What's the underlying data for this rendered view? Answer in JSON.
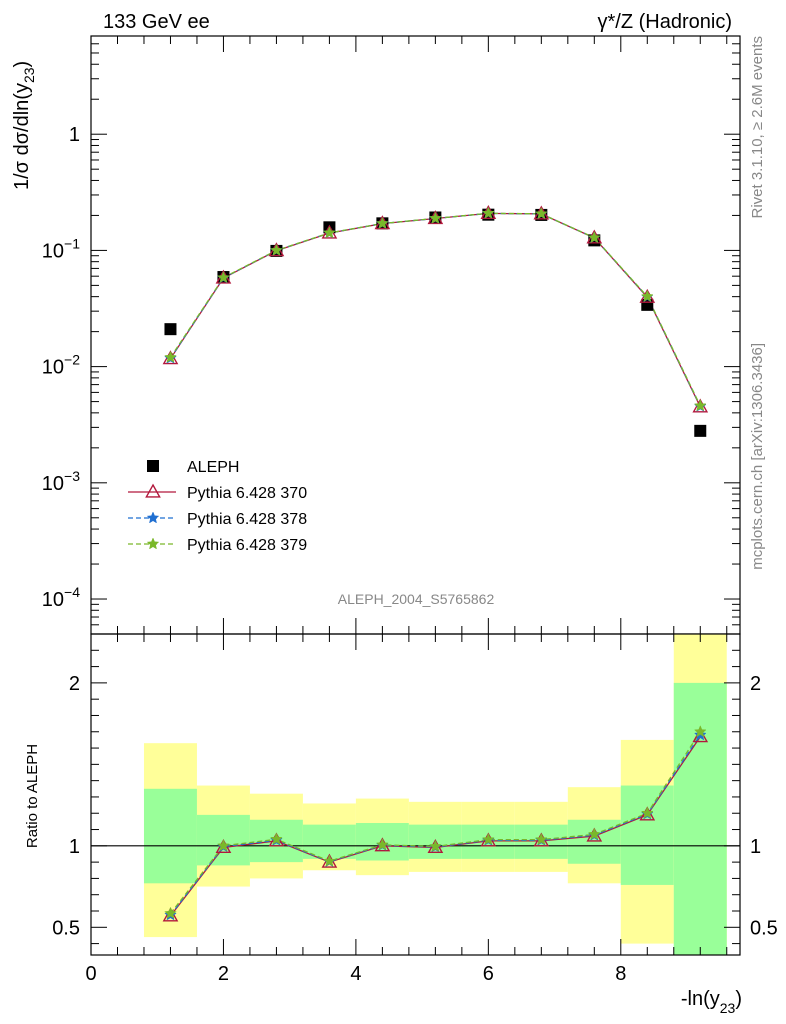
{
  "header": {
    "left": "133 GeV ee",
    "right": "γ*/Z (Hadronic)"
  },
  "side_text": {
    "top": "Rivet 3.1.10, ≥ 2.6M events",
    "bottom": "mcplots.cern.ch [arXiv:1306.3436]"
  },
  "watermark": "ALEPH_2004_S5765862",
  "chart_data": [
    {
      "type": "scatter",
      "panel": "main",
      "ylabel": "1/σ dσ/dln(y23)",
      "yscale": "log",
      "ylim": [
        5e-05,
        7
      ],
      "xlim": [
        0,
        9.8
      ],
      "y_ticks": [
        {
          "value": 0.0001,
          "mant": "10",
          "exp": "−4"
        },
        {
          "value": 0.001,
          "mant": "10",
          "exp": "−3"
        },
        {
          "value": 0.01,
          "mant": "10",
          "exp": "−2"
        },
        {
          "value": 0.1,
          "mant": "10",
          "exp": "−1"
        },
        {
          "value": 1,
          "mant": "1",
          "exp": ""
        }
      ],
      "x": [
        1.2,
        2.0,
        2.8,
        3.6,
        4.4,
        5.2,
        6.0,
        6.8,
        7.6,
        8.4,
        9.2
      ],
      "series": [
        {
          "name": "ALEPH",
          "marker": "square",
          "color": "#000000",
          "values": [
            0.021,
            0.059,
            0.099,
            0.158,
            0.171,
            0.192,
            0.203,
            0.202,
            0.122,
            0.034,
            0.0028
          ]
        },
        {
          "name": "Pythia 6.428 370",
          "marker": "triangle",
          "color": "#b2183c",
          "dash": "",
          "values": [
            0.0117,
            0.0578,
            0.0995,
            0.141,
            0.17,
            0.188,
            0.208,
            0.206,
            0.128,
            0.0395,
            0.0045
          ]
        },
        {
          "name": "Pythia 6.428 378",
          "marker": "star",
          "color": "#1f6fd1",
          "dash": "5,3",
          "values": [
            0.0118,
            0.058,
            0.0998,
            0.1412,
            0.1703,
            0.1883,
            0.2083,
            0.2063,
            0.1283,
            0.0398,
            0.00455
          ]
        },
        {
          "name": "Pythia 6.428 379",
          "marker": "star",
          "color": "#7ab82a",
          "dash": "5,3",
          "values": [
            0.012,
            0.0583,
            0.1,
            0.1415,
            0.1706,
            0.1886,
            0.2086,
            0.2066,
            0.1286,
            0.0401,
            0.0046
          ]
        }
      ]
    },
    {
      "type": "line",
      "panel": "ratio",
      "ylabel": "Ratio to ALEPH",
      "xlabel": "-ln(y23)",
      "ylim": [
        0.33,
        2.3
      ],
      "xlim": [
        0,
        9.8
      ],
      "x_ticks": [
        "0",
        "2",
        "4",
        "6",
        "8"
      ],
      "y_ticks": [
        "0.5",
        "1",
        "2"
      ],
      "bins": [
        [
          0.8,
          1.6
        ],
        [
          1.6,
          2.4
        ],
        [
          2.4,
          3.2
        ],
        [
          3.2,
          4.0
        ],
        [
          4.0,
          4.8
        ],
        [
          4.8,
          5.6
        ],
        [
          5.6,
          6.4
        ],
        [
          6.4,
          7.2
        ],
        [
          7.2,
          8.0
        ],
        [
          8.0,
          8.8
        ],
        [
          8.8,
          9.6
        ]
      ],
      "band_outer": [
        [
          0.44,
          1.63
        ],
        [
          0.75,
          1.37
        ],
        [
          0.8,
          1.32
        ],
        [
          0.85,
          1.26
        ],
        [
          0.82,
          1.29
        ],
        [
          0.84,
          1.27
        ],
        [
          0.84,
          1.27
        ],
        [
          0.84,
          1.27
        ],
        [
          0.77,
          1.36
        ],
        [
          0.4,
          1.65
        ],
        [
          0.3,
          2.3
        ]
      ],
      "band_inner": [
        [
          0.77,
          1.35
        ],
        [
          0.88,
          1.19
        ],
        [
          0.9,
          1.16
        ],
        [
          0.92,
          1.13
        ],
        [
          0.91,
          1.14
        ],
        [
          0.92,
          1.13
        ],
        [
          0.92,
          1.13
        ],
        [
          0.92,
          1.13
        ],
        [
          0.89,
          1.16
        ],
        [
          0.76,
          1.37
        ],
        [
          0.3,
          2.0
        ]
      ],
      "x": [
        1.2,
        2.0,
        2.8,
        3.6,
        4.4,
        5.2,
        6.0,
        6.8,
        7.6,
        8.4,
        9.2
      ],
      "series": [
        {
          "name": "Pythia 6.428 370",
          "color": "#b2183c",
          "values": [
            0.57,
            0.99,
            1.03,
            0.9,
            1.0,
            0.99,
            1.03,
            1.03,
            1.06,
            1.19,
            1.67
          ]
        },
        {
          "name": "Pythia 6.428 378",
          "color": "#1f6fd1",
          "values": [
            0.575,
            0.995,
            1.034,
            0.903,
            1.003,
            0.993,
            1.034,
            1.034,
            1.065,
            1.195,
            1.68
          ]
        },
        {
          "name": "Pythia 6.428 379",
          "color": "#7ab82a",
          "values": [
            0.585,
            1.0,
            1.04,
            0.906,
            1.006,
            0.996,
            1.038,
            1.038,
            1.07,
            1.2,
            1.7
          ]
        }
      ]
    }
  ],
  "colors": {
    "band_outer": "#ffff99",
    "band_inner": "#99ff99"
  }
}
